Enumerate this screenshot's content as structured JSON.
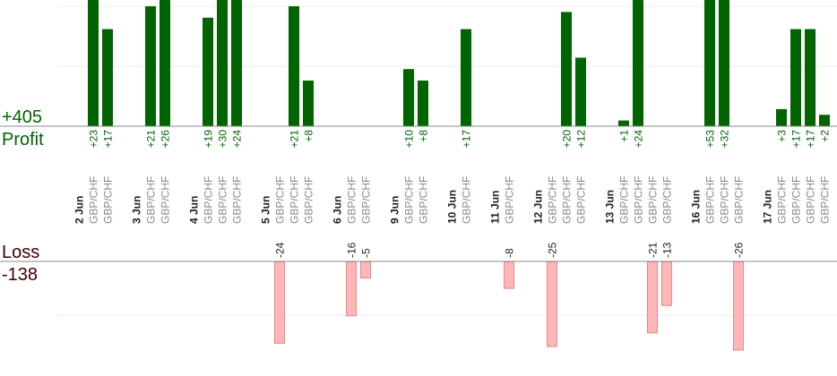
{
  "summary": {
    "profit_total": "+405",
    "profit_label": "Profit",
    "loss_label": "Loss",
    "loss_total": "-138"
  },
  "colors": {
    "profit_bar": "#006400",
    "loss_bar": "#ffb6b6",
    "loss_bar_border": "#e08c8c",
    "profit_text": "#006400",
    "loss_text": "#3a0000",
    "symbol_text": "#888888",
    "date_text": "#222222"
  },
  "chart_data": {
    "type": "bar",
    "profit_axis_max": 21,
    "loss_axis_max": 17.5,
    "days": [
      {
        "date": "2 Jun",
        "trades": [
          {
            "symbol": "GBP/CHF",
            "value": 23,
            "label": "+23"
          },
          {
            "symbol": "GBP/CHF",
            "value": 17,
            "label": "+17"
          }
        ]
      },
      {
        "date": "3 Jun",
        "trades": [
          {
            "symbol": "GBP/CHF",
            "value": 21,
            "label": "+21"
          },
          {
            "symbol": "GBP/CHF",
            "value": 26,
            "label": "+26"
          }
        ]
      },
      {
        "date": "4 Jun",
        "trades": [
          {
            "symbol": "GBP/CHF",
            "value": 19,
            "label": "+19"
          },
          {
            "symbol": "GBP/CHF",
            "value": 30,
            "label": "+30"
          },
          {
            "symbol": "GBP/CHF",
            "value": 24,
            "label": "+24"
          }
        ]
      },
      {
        "date": "5 Jun",
        "trades": [
          {
            "symbol": "GBP/CHF",
            "value": -24,
            "label": "-24"
          },
          {
            "symbol": "GBP/CHF",
            "value": 21,
            "label": "+21"
          },
          {
            "symbol": "GBP/CHF",
            "value": 8,
            "label": "+8"
          }
        ]
      },
      {
        "date": "6 Jun",
        "trades": [
          {
            "symbol": "GBP/CHF",
            "value": -16,
            "label": "-16"
          },
          {
            "symbol": "GBP/CHF",
            "value": -5,
            "label": "-5"
          }
        ]
      },
      {
        "date": "9 Jun",
        "trades": [
          {
            "symbol": "GBP/CHF",
            "value": 10,
            "label": "+10"
          },
          {
            "symbol": "GBP/CHF",
            "value": 8,
            "label": "+8"
          }
        ]
      },
      {
        "date": "10 Jun",
        "trades": [
          {
            "symbol": "GBP/CHF",
            "value": 17,
            "label": "+17"
          }
        ]
      },
      {
        "date": "11 Jun",
        "trades": [
          {
            "symbol": "GBP/CHF",
            "value": -8,
            "label": "-8"
          }
        ]
      },
      {
        "date": "12 Jun",
        "trades": [
          {
            "symbol": "GBP/CHF",
            "value": -25,
            "label": "-25"
          },
          {
            "symbol": "GBP/CHF",
            "value": 20,
            "label": "+20"
          },
          {
            "symbol": "GBP/CHF",
            "value": 12,
            "label": "+12"
          }
        ]
      },
      {
        "date": "13 Jun",
        "trades": [
          {
            "symbol": "GBP/CHF",
            "value": 1,
            "label": "+1"
          },
          {
            "symbol": "GBP/CHF",
            "value": 24,
            "label": "+24"
          },
          {
            "symbol": "GBP/CHF",
            "value": -21,
            "label": "-21"
          },
          {
            "symbol": "GBP/CHF",
            "value": -13,
            "label": "-13"
          }
        ]
      },
      {
        "date": "16 Jun",
        "trades": [
          {
            "symbol": "GBP/CHF",
            "value": 53,
            "label": "+53"
          },
          {
            "symbol": "GBP/CHF",
            "value": 32,
            "label": "+32"
          },
          {
            "symbol": "GBP/CHF",
            "value": -26,
            "label": "-26"
          }
        ]
      },
      {
        "date": "17 Jun",
        "trades": [
          {
            "symbol": "GBP/CHF",
            "value": 3,
            "label": "+3"
          },
          {
            "symbol": "GBP/CHF",
            "value": 17,
            "label": "+17"
          },
          {
            "symbol": "GBP/CHF",
            "value": 17,
            "label": "+17"
          },
          {
            "symbol": "GBP/CHF",
            "value": 2,
            "label": "+2"
          }
        ]
      }
    ]
  }
}
